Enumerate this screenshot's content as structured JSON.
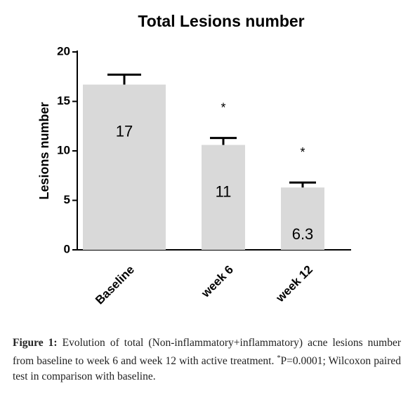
{
  "chart_data": {
    "type": "bar",
    "title": "Total Lesions number",
    "y_label": "Lesions number",
    "categories": [
      "Baseline",
      "week 6",
      "week 12"
    ],
    "values": [
      16.7,
      10.6,
      6.3
    ],
    "value_labels": [
      "17",
      "11",
      "6.3"
    ],
    "errors": [
      1.0,
      0.7,
      0.5
    ],
    "annotations": [
      null,
      "*",
      "*"
    ],
    "color": "#d9d9d9",
    "error_color": "#000000",
    "ylim": [
      0,
      20
    ],
    "yticks": [
      0,
      5,
      10,
      15,
      20
    ],
    "grid": false
  },
  "caption": {
    "label": "Figure 1:",
    "text": "Evolution of total (Non-inflammatory+inflammatory) acne lesions number from baseline to week 6 and week 12 with active treatment.",
    "sup": "*",
    "note": "P=0.0001; Wilcoxon paired test in comparison with baseline."
  }
}
